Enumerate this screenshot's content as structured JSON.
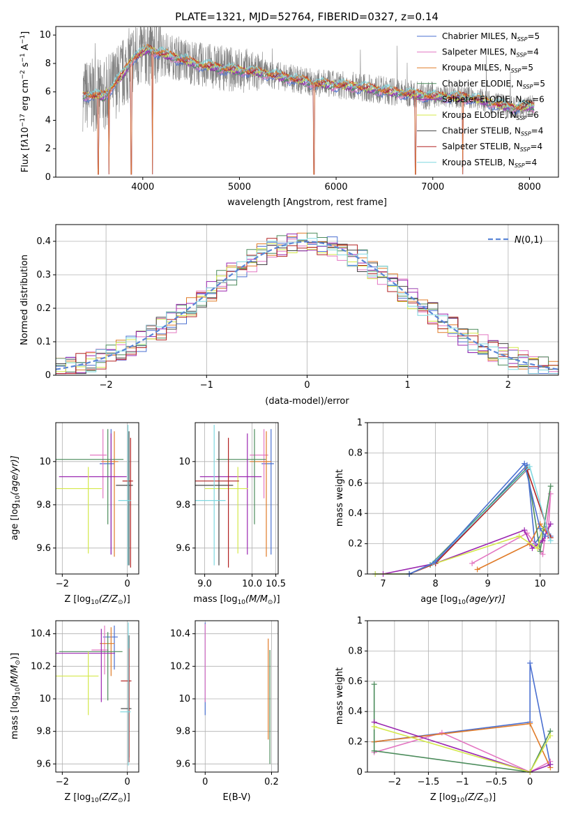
{
  "figure": {
    "title": "PLATE=1321, MJD=52764, FIBERID=0327, z=0.14"
  },
  "legend_entries": [
    {
      "label": "Chabrier MILES, N",
      "sub": "SSP",
      "tail": "=5",
      "color": "#4a6fd0"
    },
    {
      "label": "Salpeter MILES, N",
      "sub": "SSP",
      "tail": "=4",
      "color": "#e377c2"
    },
    {
      "label": "Kroupa MILES, N",
      "sub": "SSP",
      "tail": "=5",
      "color": "#e07b28"
    },
    {
      "label": "Chabrier ELODIE, N",
      "sub": "SSP",
      "tail": "=5",
      "color": "#4c8c5c"
    },
    {
      "label": "Salpeter ELODIE, N",
      "sub": "SSP",
      "tail": "=6",
      "color": "#9b27b0"
    },
    {
      "label": "Kroupa ELODIE, N",
      "sub": "SSP",
      "tail": "=6",
      "color": "#d4e84a"
    },
    {
      "label": "Chabrier STELIB, N",
      "sub": "SSP",
      "tail": "=4",
      "color": "#444444"
    },
    {
      "label": "Salpeter STELIB, N",
      "sub": "SSP",
      "tail": "=4",
      "color": "#b22222"
    },
    {
      "label": "Kroupa STELIB, N",
      "sub": "SSP",
      "tail": "=4",
      "color": "#7fd7df"
    }
  ],
  "chart_data": [
    {
      "id": "spectrum",
      "type": "line",
      "xlabel": "wavelength [Angstrom, rest frame]",
      "ylabel_parts": [
        "Flux [f",
        "λ",
        "10",
        "−17",
        " erg cm",
        "−2",
        " s",
        "−1",
        " A",
        "−1",
        "]"
      ],
      "xlim": [
        3100,
        8300
      ],
      "ylim": [
        0,
        10.6
      ],
      "xticks": [
        4000,
        5000,
        6000,
        7000,
        8000
      ],
      "yticks": [
        0,
        2,
        4,
        6,
        8,
        10
      ],
      "data_color": "#808080",
      "continuum": [
        [
          3380,
          5.8
        ],
        [
          3600,
          5.7
        ],
        [
          3800,
          7.3
        ],
        [
          3900,
          8.4
        ],
        [
          4050,
          9.0
        ],
        [
          4300,
          8.5
        ],
        [
          4600,
          7.9
        ],
        [
          4900,
          7.6
        ],
        [
          5200,
          7.4
        ],
        [
          5500,
          7.0
        ],
        [
          5800,
          6.6
        ],
        [
          6200,
          6.4
        ],
        [
          6600,
          6.0
        ],
        [
          7000,
          5.7
        ],
        [
          7400,
          5.6
        ],
        [
          7800,
          4.9
        ],
        [
          8050,
          5.0
        ]
      ],
      "dips": [
        [
          3540,
          0.0
        ],
        [
          3650,
          0.0
        ],
        [
          3880,
          0.0
        ],
        [
          4100,
          0.0
        ],
        [
          5770,
          0.0
        ],
        [
          6820,
          0.0
        ],
        [
          7310,
          0.0
        ]
      ]
    },
    {
      "id": "residuals",
      "type": "histogram",
      "xlabel": "(data-model)/error",
      "ylabel": "Normed distribution",
      "xlim": [
        -2.5,
        2.5
      ],
      "ylim": [
        0,
        0.45
      ],
      "xticks": [
        -2,
        -1,
        0,
        1,
        2
      ],
      "yticks": [
        0.0,
        0.1,
        0.2,
        0.3,
        0.4
      ],
      "bin_width": 0.1,
      "legend": "N(0,1)",
      "gaussian_color": "#5b86d6"
    },
    {
      "id": "age_vs_Z",
      "type": "scatter",
      "xlabel_parts": [
        "Z [log",
        "10",
        "(Z/Z",
        "⊙",
        ")]"
      ],
      "ylabel_parts": [
        "age  [log",
        "10",
        "(age/yr)]"
      ],
      "xlim": [
        -2.2,
        0.35
      ],
      "ylim": [
        9.48,
        10.18
      ],
      "xticks": [
        -2,
        0
      ],
      "yticks": [
        9.6,
        9.8,
        10.0
      ],
      "points": [
        {
          "x": -0.5,
          "xerr": 0.35,
          "y": 9.99,
          "yerr": [
            0.42,
            0.16
          ]
        },
        {
          "x": -0.75,
          "xerr": 0.4,
          "y": 10.03,
          "yerr": [
            0.2,
            0.12
          ]
        },
        {
          "x": -0.4,
          "xerr": 0.4,
          "y": 10.0,
          "yerr": [
            0.44,
            0.14
          ]
        },
        {
          "x": -0.6,
          "xerr": 1.6,
          "y": 10.01,
          "yerr": [
            0.3,
            0.14
          ]
        },
        {
          "x": -0.5,
          "xerr": 1.6,
          "y": 9.93,
          "yerr": [
            0.36,
            0.2
          ]
        },
        {
          "x": -1.2,
          "xerr": 1.4,
          "y": 9.875,
          "yerr": [
            0.3,
            0.1
          ]
        },
        {
          "x": 0.05,
          "xerr": 0.4,
          "y": 9.89,
          "yerr": [
            0.37,
            0.25
          ]
        },
        {
          "x": 0.1,
          "xerr": 0.25,
          "y": 9.91,
          "yerr": [
            0.4,
            0.2
          ]
        },
        {
          "x": 0.02,
          "xerr": 0.3,
          "y": 9.82,
          "yerr": [
            0.3,
            0.35
          ]
        }
      ]
    },
    {
      "id": "age_vs_mass",
      "type": "scatter",
      "xlabel_parts": [
        "mass [log",
        "10",
        "(M/M",
        "⊙",
        ")]"
      ],
      "ylabel_parts": [],
      "xlim": [
        10.6,
        10.55
      ],
      "xlim_actual": [
        8.8,
        10.55
      ],
      "ylim": [
        9.48,
        10.18
      ],
      "xticks": [
        9.0,
        10.0,
        10.5
      ],
      "xticklabels": [
        "9.0",
        "10.0",
        "10.5"
      ],
      "yticks": [
        9.6,
        9.8,
        10.0
      ],
      "points": [
        {
          "x": 10.4,
          "xerr": 0.2,
          "y": 9.99,
          "yerr": [
            0.42,
            0.16
          ]
        },
        {
          "x": 10.25,
          "xerr": 0.3,
          "y": 10.03,
          "yerr": [
            0.2,
            0.12
          ]
        },
        {
          "x": 10.3,
          "xerr": 0.35,
          "y": 10.0,
          "yerr": [
            0.44,
            0.14
          ]
        },
        {
          "x": 10.05,
          "xerr": 0.8,
          "y": 10.01,
          "yerr": [
            0.3,
            0.14
          ]
        },
        {
          "x": 9.9,
          "xerr": 1.0,
          "y": 9.93,
          "yerr": [
            0.36,
            0.2
          ]
        },
        {
          "x": 9.7,
          "xerr": 0.7,
          "y": 9.875,
          "yerr": [
            0.3,
            0.1
          ]
        },
        {
          "x": 9.3,
          "xerr": 1.0,
          "y": 9.89,
          "yerr": [
            0.37,
            0.25
          ]
        },
        {
          "x": 9.5,
          "xerr": 0.75,
          "y": 9.91,
          "yerr": [
            0.4,
            0.2
          ]
        },
        {
          "x": 9.2,
          "xerr": 0.8,
          "y": 9.82,
          "yerr": [
            0.3,
            0.35
          ]
        }
      ]
    },
    {
      "id": "massweight_vs_age",
      "type": "line",
      "xlabel_parts": [
        "age  [log",
        "10",
        "(age/yr)]"
      ],
      "ylabel": "mass weight",
      "xlim": [
        6.7,
        10.35
      ],
      "ylim": [
        0,
        1.0
      ],
      "xticks": [
        7,
        8,
        9,
        10
      ],
      "yticks": [
        0.0,
        0.2,
        0.4,
        0.6,
        0.8,
        1.0
      ],
      "series": [
        {
          "x": [
            6.85,
            7.5,
            8.0,
            9.75,
            9.9,
            10.1,
            10.2
          ],
          "y": [
            0.0,
            0.0,
            0.07,
            0.72,
            0.2,
            0.3,
            0.25
          ]
        },
        {
          "x": [
            8.7,
            9.75,
            10.05,
            10.2,
            10.15
          ],
          "y": [
            0.07,
            0.27,
            0.13,
            0.53,
            0.25
          ]
        },
        {
          "x": [
            8.8,
            9.8,
            10.0,
            10.2
          ],
          "y": [
            0.03,
            0.2,
            0.33,
            0.24
          ]
        },
        {
          "x": [
            7.5,
            7.9,
            9.75,
            10.0,
            10.2
          ],
          "y": [
            0.0,
            0.06,
            0.7,
            0.15,
            0.58
          ]
        },
        {
          "x": [
            7.0,
            8.0,
            9.7,
            9.85,
            10.05,
            10.2
          ],
          "y": [
            0.0,
            0.07,
            0.29,
            0.17,
            0.22,
            0.33
          ]
        },
        {
          "x": [
            6.85,
            7.5,
            8.0,
            9.6,
            9.95,
            10.05
          ],
          "y": [
            0.0,
            0.0,
            0.07,
            0.25,
            0.17,
            0.3
          ]
        },
        {
          "x": [
            7.5,
            8.0,
            9.75,
            10.2
          ],
          "y": [
            0.0,
            0.07,
            0.69,
            0.24
          ]
        },
        {
          "x": [
            7.5,
            7.95,
            9.8,
            10.2
          ],
          "y": [
            0.0,
            0.07,
            0.71,
            0.22
          ]
        },
        {
          "x": [
            7.5,
            8.0,
            9.7,
            10.0,
            10.1
          ],
          "y": [
            0.0,
            0.08,
            0.73,
            0.3,
            0.25
          ]
        }
      ]
    },
    {
      "id": "mass_vs_Z",
      "type": "scatter",
      "xlabel_parts": [
        "Z [log",
        "10",
        "(Z/Z",
        "⊙",
        ")]"
      ],
      "ylabel_parts": [
        "mass [log",
        "10",
        "(M/M",
        "⊙",
        ")]"
      ],
      "xlim": [
        -2.2,
        0.35
      ],
      "ylim": [
        9.55,
        10.48
      ],
      "xticks": [
        -2,
        0
      ],
      "yticks": [
        9.6,
        9.8,
        10.0,
        10.2,
        10.4
      ],
      "points": [
        {
          "x": -0.4,
          "xerr": 0.35,
          "y": 10.38,
          "yerr": [
            0.2,
            0.07
          ]
        },
        {
          "x": -0.7,
          "xerr": 0.4,
          "y": 10.3,
          "yerr": [
            0.15,
            0.15
          ]
        },
        {
          "x": -0.5,
          "xerr": 0.35,
          "y": 10.34,
          "yerr": [
            0.2,
            0.1
          ]
        },
        {
          "x": -0.6,
          "xerr": 1.5,
          "y": 10.29,
          "yerr": [
            0.3,
            0.12
          ]
        },
        {
          "x": -0.8,
          "xerr": 1.4,
          "y": 10.28,
          "yerr": [
            0.3,
            0.15
          ]
        },
        {
          "x": -1.2,
          "xerr": 1.05,
          "y": 10.14,
          "yerr": [
            0.24,
            0.15
          ]
        },
        {
          "x": 0.05,
          "xerr": 0.25,
          "y": 9.94,
          "yerr": [
            0.3,
            0.45
          ]
        },
        {
          "x": 0.05,
          "xerr": 0.25,
          "y": 10.11,
          "yerr": [
            0.5,
            0.2
          ]
        },
        {
          "x": 0.03,
          "xerr": 0.25,
          "y": 9.92,
          "yerr": [
            0.33,
            0.55
          ]
        }
      ]
    },
    {
      "id": "mass_vs_ebv",
      "type": "scatter",
      "xlabel": "E(B-V)",
      "xlim": [
        -0.03,
        0.22
      ],
      "ylim": [
        9.55,
        10.48
      ],
      "xticks": [
        0.0,
        0.2
      ],
      "yticks": [
        9.6,
        9.8,
        10.0,
        10.2,
        10.4
      ],
      "points": [
        {
          "x": 0.0,
          "y": 10.35,
          "yerr": [
            0.45,
            0.12
          ]
        },
        {
          "x": 0.0,
          "y": 10.38,
          "yerr": [
            0.4,
            0.08
          ]
        },
        {
          "x": 0.19,
          "y": 10.15,
          "yerr": [
            0.4,
            0.22
          ]
        },
        {
          "x": 0.195,
          "y": 9.95,
          "yerr": [
            0.35,
            0.35
          ]
        }
      ]
    },
    {
      "id": "massweight_vs_Z",
      "type": "line",
      "xlabel_parts": [
        "Z [log",
        "10",
        "(Z/Z",
        "⊙",
        ")]"
      ],
      "ylabel": "mass weight",
      "xlim": [
        -2.4,
        0.42
      ],
      "ylim": [
        0,
        1.0
      ],
      "xticks": [
        -2.0,
        -1.5,
        -1.0,
        -0.5,
        0.0
      ],
      "yticks": [
        0.0,
        0.2,
        0.4,
        0.6,
        0.8,
        1.0
      ],
      "series": [
        {
          "x": [
            -2.3,
            0.0,
            0.0,
            0.3
          ],
          "y": [
            0.2,
            0.33,
            0.72,
            0.05
          ]
        },
        {
          "x": [
            -2.3,
            -1.3,
            0.0,
            0.3
          ],
          "y": [
            0.13,
            0.26,
            0.0,
            0.07
          ]
        },
        {
          "x": [
            -2.3,
            0.0,
            0.3
          ],
          "y": [
            0.2,
            0.32,
            0.03
          ]
        },
        {
          "x": [
            -2.3,
            -2.3,
            0.0,
            0.3
          ],
          "y": [
            0.58,
            0.14,
            0.0,
            0.27
          ]
        },
        {
          "x": [
            -2.3,
            0.0,
            0.3
          ],
          "y": [
            0.33,
            0.0,
            0.05
          ]
        },
        {
          "x": [
            -2.3,
            0.0,
            0.3
          ],
          "y": [
            0.3,
            0.0,
            0.24
          ]
        }
      ]
    }
  ]
}
